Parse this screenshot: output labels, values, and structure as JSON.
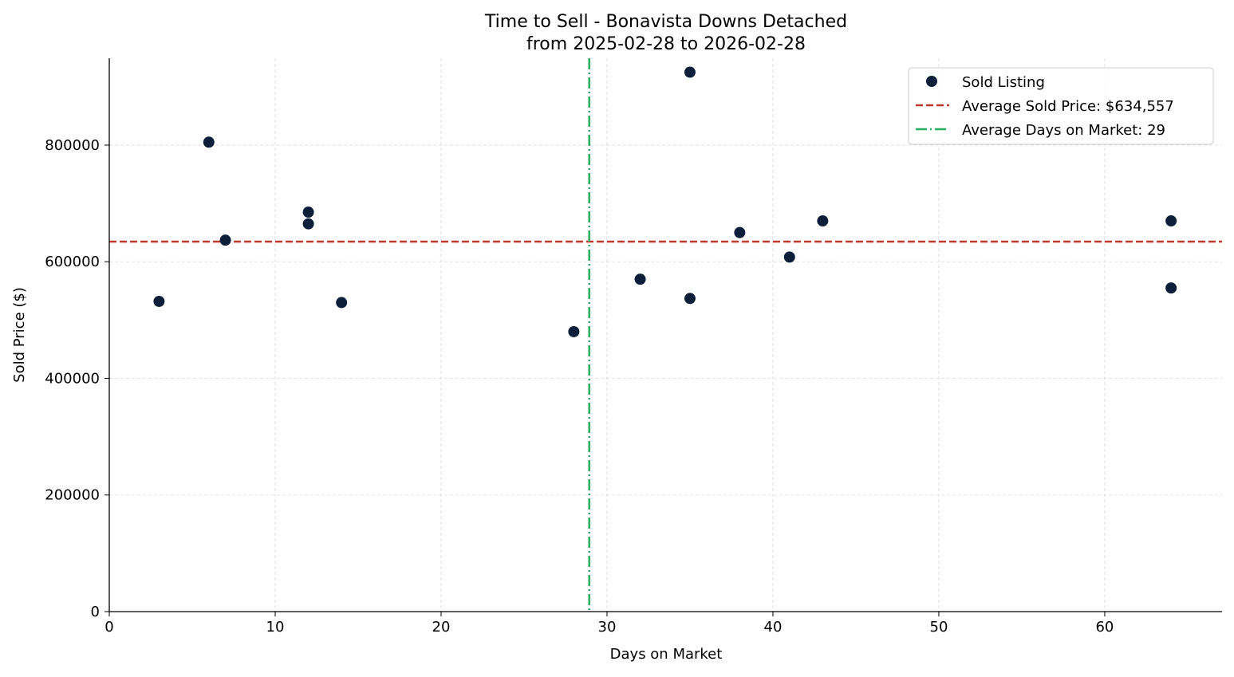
{
  "chart_data": {
    "type": "scatter",
    "title": "Time to Sell - Bonavista Downs Detached",
    "subtitle": "from 2025-02-28 to 2026-02-28",
    "xlabel": "Days on Market",
    "ylabel": "Sold Price ($)",
    "xlim": [
      0,
      67.07
    ],
    "ylim": [
      0,
      949000
    ],
    "xticks": [
      0,
      10,
      20,
      30,
      40,
      50,
      60
    ],
    "yticks": [
      0,
      200000,
      400000,
      600000,
      800000
    ],
    "grid": true,
    "legend_position": "top-right",
    "series": [
      {
        "name": "Sold Listing",
        "color": "#0b1f3a",
        "points": [
          {
            "x": 3,
            "y": 532000
          },
          {
            "x": 6,
            "y": 805000
          },
          {
            "x": 7,
            "y": 637000
          },
          {
            "x": 12,
            "y": 685000
          },
          {
            "x": 12,
            "y": 665000
          },
          {
            "x": 14,
            "y": 530000
          },
          {
            "x": 28,
            "y": 480000
          },
          {
            "x": 32,
            "y": 570000
          },
          {
            "x": 35,
            "y": 925000
          },
          {
            "x": 35,
            "y": 537000
          },
          {
            "x": 38,
            "y": 650000
          },
          {
            "x": 41,
            "y": 608000
          },
          {
            "x": 43,
            "y": 670000
          },
          {
            "x": 64,
            "y": 670000
          },
          {
            "x": 64,
            "y": 555000
          }
        ]
      }
    ],
    "reference_lines": [
      {
        "name": "Average Sold Price: $634,557",
        "orientation": "horizontal",
        "value": 634557,
        "color": "#c0392b",
        "style": "dashed"
      },
      {
        "name": "Average Days on Market: 29",
        "orientation": "vertical",
        "value": 28.93,
        "color": "#27ae60",
        "style": "dashdot"
      }
    ]
  }
}
